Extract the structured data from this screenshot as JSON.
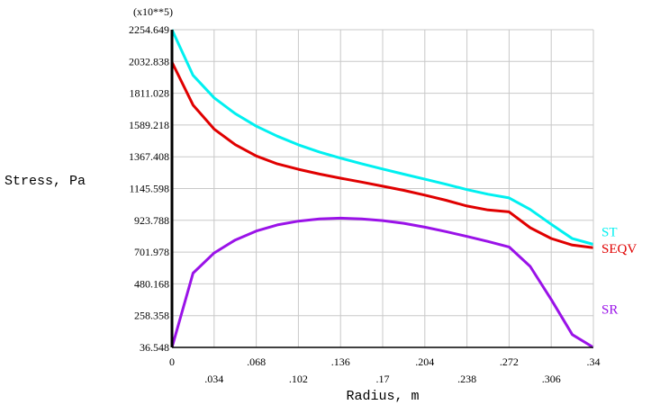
{
  "chart_data": {
    "type": "line",
    "ylabel": "Stress, Pa",
    "xlabel": "Radius, m",
    "y_multiplier": "(x10**5)",
    "xlim": [
      0,
      0.34
    ],
    "ylim": [
      36.548,
      2254.649
    ],
    "x_tick_labels": [
      "0",
      ".034",
      ".068",
      ".102",
      ".136",
      ".17",
      ".204",
      ".238",
      ".272",
      ".306",
      ".34"
    ],
    "y_tick_labels": [
      "36.548",
      "258.358",
      "480.168",
      "701.978",
      "923.788",
      "1145.598",
      "1367.408",
      "1589.218",
      "1811.028",
      "2032.838",
      "2254.649"
    ],
    "grid": true,
    "x": [
      0,
      0.017,
      0.034,
      0.051,
      0.068,
      0.085,
      0.102,
      0.119,
      0.136,
      0.153,
      0.17,
      0.187,
      0.204,
      0.221,
      0.238,
      0.255,
      0.272,
      0.289,
      0.306,
      0.323,
      0.34
    ],
    "series": [
      {
        "name": "ST",
        "color": "#00f0f0",
        "values": [
          2254.649,
          1936,
          1779,
          1669,
          1581,
          1511,
          1451,
          1401,
          1358,
          1319,
          1282,
          1246,
          1211,
          1176,
          1138,
          1106,
          1080,
          1000,
          896,
          796,
          756
        ]
      },
      {
        "name": "SEQV",
        "color": "#e00000",
        "values": [
          2028,
          1729,
          1561,
          1452,
          1373,
          1318,
          1280,
          1247,
          1218,
          1191,
          1162,
          1133,
          1100,
          1064,
          1024,
          996,
          983,
          872,
          797,
          751,
          733
        ]
      },
      {
        "name": "SR",
        "color": "#9a12e8",
        "values": [
          36.548,
          555,
          696,
          786,
          849,
          892,
          918,
          933,
          939,
          934,
          922,
          903,
          876,
          845,
          811,
          776,
          738,
          602,
          371,
          126,
          36.548
        ]
      }
    ]
  }
}
